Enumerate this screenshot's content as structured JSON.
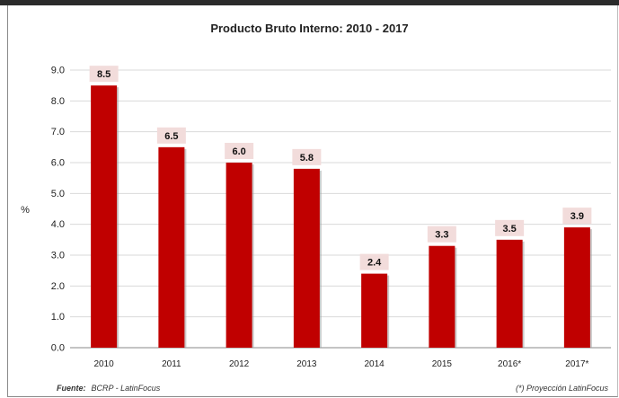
{
  "chart_data": {
    "type": "bar",
    "title": "Producto Bruto Interno: 2010 - 2017",
    "xlabel": "",
    "ylabel": "%",
    "categories": [
      "2010",
      "2011",
      "2012",
      "2013",
      "2014",
      "2015",
      "2016*",
      "2017*"
    ],
    "values": [
      8.5,
      6.5,
      6.0,
      5.8,
      2.4,
      3.3,
      3.5,
      3.9
    ],
    "data_labels": [
      "8.5",
      "6.5",
      "6.0",
      "5.8",
      "2.4",
      "3.3",
      "3.5",
      "3.9"
    ],
    "ylim": [
      0,
      9
    ],
    "yticks": [
      "0.0",
      "1.0",
      "2.0",
      "3.0",
      "4.0",
      "5.0",
      "6.0",
      "7.0",
      "8.0",
      "9.0"
    ],
    "grid": true,
    "legend": "none",
    "bar_color": "#c00000",
    "label_bg_color": "#f2dcdb"
  },
  "footer": {
    "source_label": "Fuente:",
    "source_text": "BCRP - LatinFocus",
    "note": "(*) Proyección LatinFocus"
  }
}
